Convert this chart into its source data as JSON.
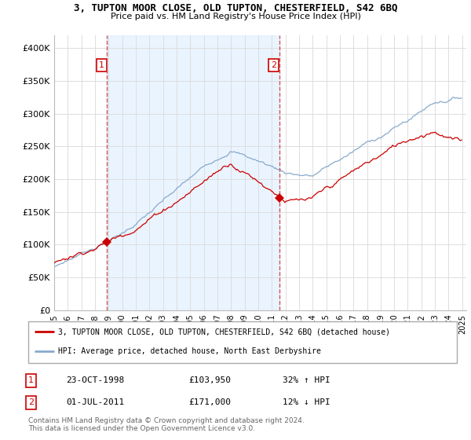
{
  "title_line1": "3, TUPTON MOOR CLOSE, OLD TUPTON, CHESTERFIELD, S42 6BQ",
  "title_line2": "Price paid vs. HM Land Registry's House Price Index (HPI)",
  "red_line_label": "3, TUPTON MOOR CLOSE, OLD TUPTON, CHESTERFIELD, S42 6BQ (detached house)",
  "blue_line_label": "HPI: Average price, detached house, North East Derbyshire",
  "sale1_date": "23-OCT-1998",
  "sale1_price": 103950,
  "sale1_hpi_pct": "32% ↑ HPI",
  "sale2_date": "01-JUL-2011",
  "sale2_price": 171000,
  "sale2_hpi_pct": "12% ↓ HPI",
  "footer": "Contains HM Land Registry data © Crown copyright and database right 2024.\nThis data is licensed under the Open Government Licence v3.0.",
  "red_color": "#cc0000",
  "blue_color": "#88aacc",
  "vline_color": "#cc4444",
  "grid_color": "#dddddd",
  "shade_color": "#ddeeff",
  "ylim": [
    0,
    420000
  ],
  "yticks": [
    0,
    50000,
    100000,
    150000,
    200000,
    250000,
    300000,
    350000,
    400000
  ],
  "ytick_labels": [
    "£0",
    "£50K",
    "£100K",
    "£150K",
    "£200K",
    "£250K",
    "£300K",
    "£350K",
    "£400K"
  ],
  "sale1_t": 1998.875,
  "sale2_t": 2011.542
}
